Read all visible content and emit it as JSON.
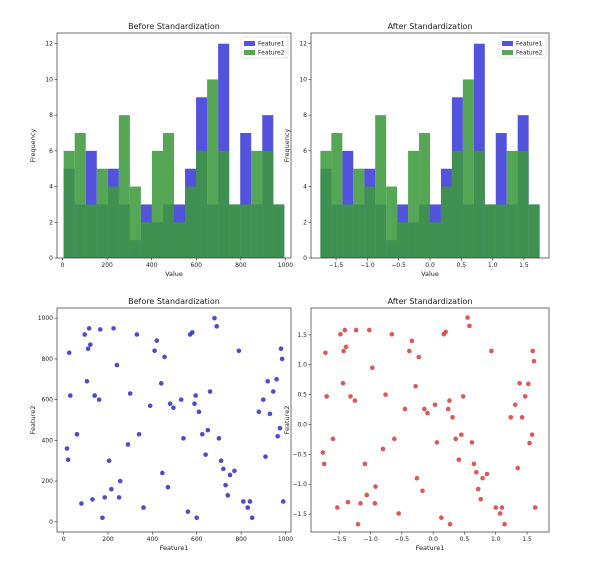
{
  "chart_data": [
    {
      "type": "bar",
      "title": "Before Standardization",
      "xlabel": "Value",
      "ylabel": "Frequency",
      "xlim": [
        -25,
        1025
      ],
      "ylim": [
        0,
        12.6
      ],
      "xticks": [
        0,
        200,
        400,
        600,
        800,
        1000
      ],
      "yticks": [
        0,
        2,
        4,
        6,
        8,
        10,
        12
      ],
      "legend": "top-right",
      "bin_edges": [
        5,
        54.5,
        104,
        153.5,
        203,
        252.5,
        302,
        351.5,
        401,
        450.5,
        500,
        549.5,
        599,
        648.5,
        698,
        747.5,
        797,
        846.5,
        896,
        945.5,
        995
      ],
      "series": [
        {
          "name": "Feature1",
          "color": "#3b3bd8",
          "values": [
            5,
            3,
            6,
            3,
            5,
            3,
            1,
            3,
            2,
            3,
            3,
            5,
            9,
            3,
            12,
            3,
            7,
            3,
            8,
            3
          ]
        },
        {
          "name": "Feature2",
          "color": "#3d9a3d",
          "values": [
            6,
            7,
            3,
            5,
            4,
            8,
            4,
            2,
            6,
            7,
            2,
            4,
            6,
            10,
            6,
            3,
            3,
            6,
            6,
            3
          ]
        }
      ]
    },
    {
      "type": "bar",
      "title": "After Standardization",
      "xlabel": "Value",
      "ylabel": "Frequency",
      "xlim": [
        -1.9,
        1.9
      ],
      "ylim": [
        0,
        12.6
      ],
      "xticks": [
        -1.5,
        -1.0,
        -0.5,
        0.0,
        0.5,
        1.0,
        1.5
      ],
      "xtick_labels": [
        "−1.5",
        "−1.0",
        "−0.5",
        "0.0",
        "0.5",
        "1.0",
        "1.5"
      ],
      "yticks": [
        0,
        2,
        4,
        6,
        8,
        10,
        12
      ],
      "legend": "top-right",
      "bin_edges": [
        -1.75,
        -1.575,
        -1.4,
        -1.225,
        -1.05,
        -0.875,
        -0.7,
        -0.525,
        -0.35,
        -0.175,
        0.0,
        0.175,
        0.35,
        0.525,
        0.7,
        0.875,
        1.05,
        1.225,
        1.4,
        1.575,
        1.75
      ],
      "series": [
        {
          "name": "Feature1",
          "color": "#3b3bd8",
          "values": [
            5,
            3,
            6,
            3,
            5,
            3,
            1,
            3,
            2,
            3,
            3,
            5,
            9,
            3,
            12,
            3,
            7,
            3,
            8,
            3
          ]
        },
        {
          "name": "Feature2",
          "color": "#3d9a3d",
          "values": [
            6,
            7,
            3,
            5,
            4,
            8,
            4,
            2,
            6,
            7,
            2,
            4,
            6,
            10,
            6,
            3,
            3,
            6,
            6,
            3
          ]
        }
      ]
    },
    {
      "type": "scatter",
      "title": "Before Standardization",
      "xlabel": "Feature1",
      "ylabel": "Feature2",
      "xlim": [
        -30,
        1025
      ],
      "ylim": [
        -50,
        1050
      ],
      "xticks": [
        0,
        200,
        400,
        600,
        800,
        1000
      ],
      "yticks": [
        0,
        200,
        400,
        600,
        800,
        1000
      ],
      "color": "#2b2bc8",
      "x": [
        15,
        20,
        25,
        30,
        60,
        80,
        95,
        105,
        110,
        115,
        120,
        130,
        140,
        160,
        165,
        175,
        185,
        205,
        215,
        225,
        240,
        250,
        255,
        290,
        300,
        330,
        340,
        360,
        390,
        410,
        420,
        440,
        445,
        455,
        470,
        480,
        495,
        530,
        540,
        560,
        570,
        580,
        590,
        595,
        600,
        610,
        625,
        640,
        650,
        660,
        680,
        690,
        700,
        710,
        720,
        730,
        740,
        750,
        770,
        790,
        810,
        830,
        840,
        850,
        880,
        900,
        910,
        920,
        930,
        945,
        960,
        965,
        975,
        980,
        985,
        990
      ],
      "y": [
        360,
        305,
        830,
        620,
        430,
        90,
        920,
        690,
        850,
        950,
        870,
        110,
        620,
        600,
        945,
        20,
        120,
        300,
        160,
        950,
        770,
        120,
        200,
        380,
        630,
        920,
        430,
        70,
        570,
        840,
        890,
        680,
        240,
        810,
        170,
        580,
        560,
        600,
        410,
        50,
        920,
        930,
        580,
        620,
        20,
        540,
        430,
        330,
        450,
        640,
        1000,
        960,
        410,
        300,
        260,
        180,
        130,
        230,
        250,
        840,
        100,
        70,
        100,
        20,
        540,
        600,
        320,
        690,
        530,
        640,
        700,
        420,
        460,
        850,
        800,
        100
      ]
    },
    {
      "type": "scatter",
      "title": "After Standardization",
      "xlabel": "Feature1",
      "ylabel": "Feature2",
      "xlim": [
        -1.95,
        1.85
      ],
      "ylim": [
        -1.8,
        1.95
      ],
      "xticks": [
        -1.5,
        -1.0,
        -0.5,
        0.0,
        0.5,
        1.0,
        1.5
      ],
      "xtick_labels": [
        "−1.5",
        "−1.0",
        "−0.5",
        "0.0",
        "0.5",
        "1.0",
        "1.5"
      ],
      "yticks": [
        -1.5,
        -1.0,
        -0.5,
        0.0,
        0.5,
        1.0,
        1.5
      ],
      "ytick_labels": [
        "−1.5",
        "−1.0",
        "−0.5",
        "0.0",
        "0.5",
        "1.0",
        "1.5"
      ],
      "color": "#d83a3a",
      "x": [
        -1.76,
        -1.74,
        -1.72,
        -1.7,
        -1.6,
        -1.53,
        -1.48,
        -1.44,
        -1.43,
        -1.41,
        -1.39,
        -1.36,
        -1.32,
        -1.25,
        -1.23,
        -1.2,
        -1.16,
        -1.09,
        -1.06,
        -1.02,
        -0.97,
        -0.93,
        -0.92,
        -0.8,
        -0.76,
        -0.66,
        -0.62,
        -0.55,
        -0.45,
        -0.38,
        -0.34,
        -0.28,
        -0.26,
        -0.23,
        -0.17,
        -0.14,
        -0.09,
        0.03,
        0.06,
        0.13,
        0.17,
        0.2,
        0.24,
        0.26,
        0.27,
        0.31,
        0.36,
        0.41,
        0.45,
        0.48,
        0.55,
        0.58,
        0.62,
        0.65,
        0.69,
        0.72,
        0.76,
        0.79,
        0.86,
        0.93,
        1.0,
        1.07,
        1.1,
        1.14,
        1.24,
        1.31,
        1.35,
        1.38,
        1.42,
        1.47,
        1.52,
        1.54,
        1.58,
        1.59,
        1.61,
        1.63
      ],
      "y": [
        -0.47,
        -0.66,
        1.2,
        0.47,
        -0.24,
        -1.39,
        1.51,
        0.69,
        1.23,
        1.58,
        1.3,
        -1.3,
        0.47,
        0.4,
        1.58,
        -1.67,
        -1.32,
        -0.66,
        -1.18,
        1.58,
        0.95,
        -1.32,
        -1.04,
        -0.41,
        0.5,
        1.51,
        -0.24,
        -1.49,
        0.26,
        1.23,
        1.4,
        0.64,
        -0.9,
        1.13,
        -1.11,
        0.26,
        0.19,
        0.33,
        -0.3,
        -1.56,
        1.51,
        1.55,
        0.26,
        0.4,
        -1.67,
        0.12,
        -0.24,
        -0.59,
        -0.17,
        0.47,
        1.79,
        1.65,
        -0.3,
        -0.66,
        -0.8,
        -1.08,
        -1.25,
        -0.9,
        -0.83,
        1.23,
        -1.39,
        -1.49,
        -1.39,
        -1.67,
        0.12,
        0.33,
        -0.73,
        0.69,
        0.12,
        0.47,
        0.68,
        -0.31,
        -0.17,
        1.23,
        1.06,
        -1.39
      ]
    }
  ]
}
